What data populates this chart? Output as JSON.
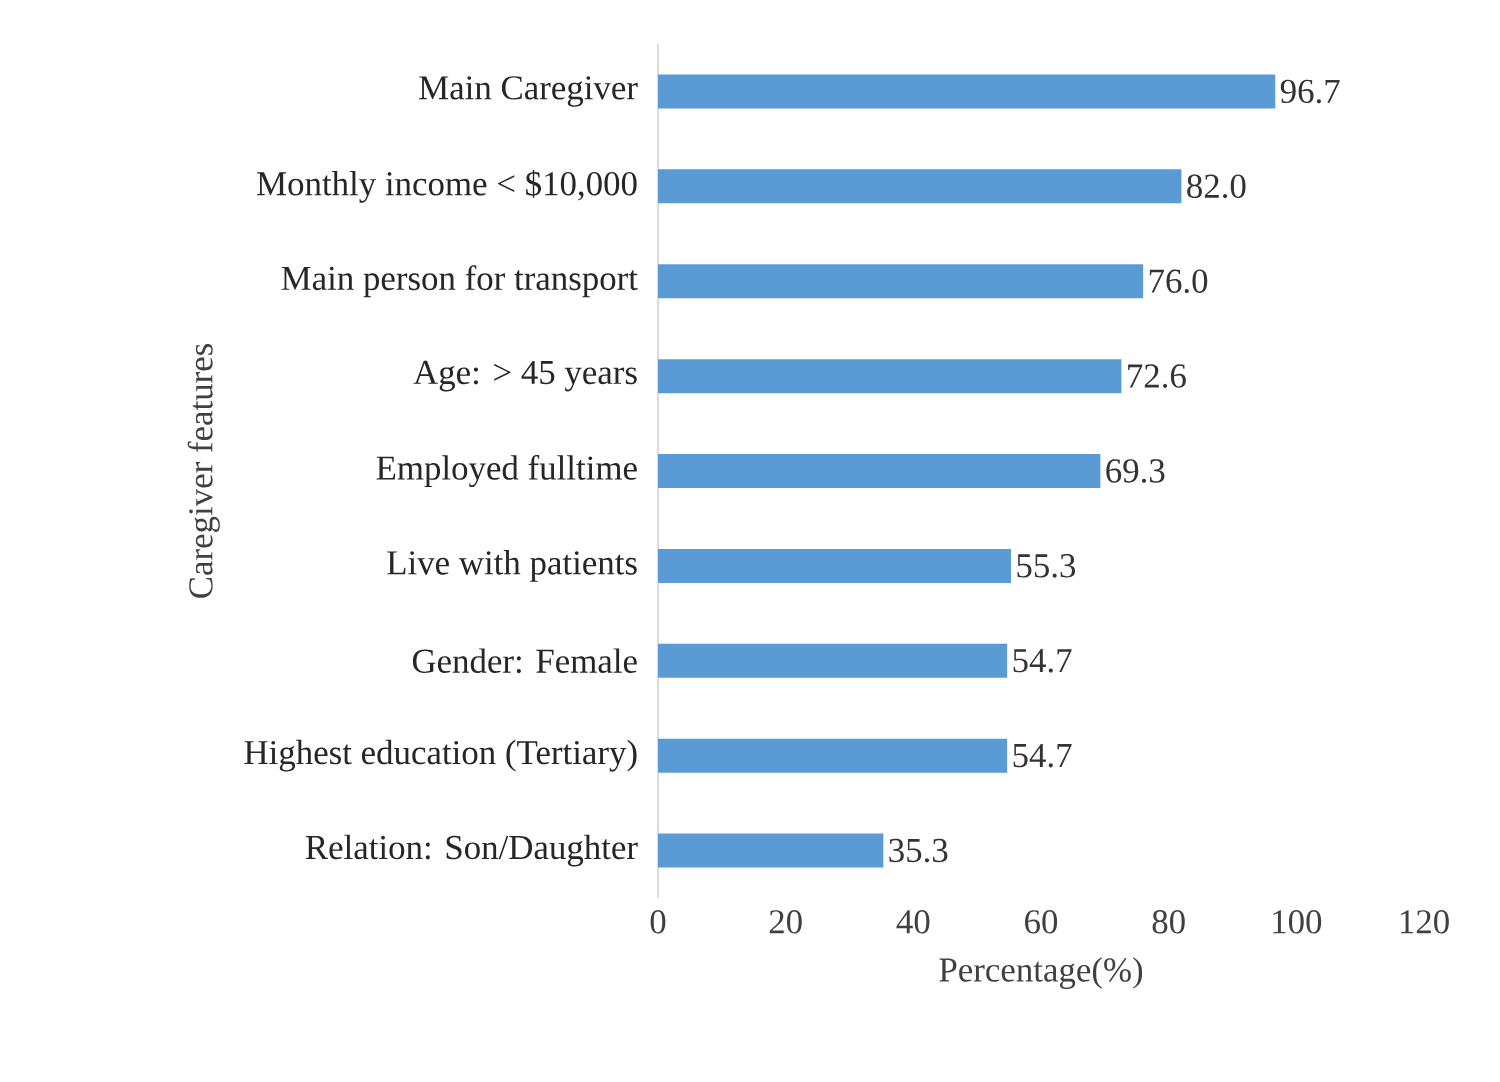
{
  "chart_data": {
    "type": "bar",
    "orientation": "horizontal",
    "xlabel": "Percentage(%)",
    "ylabel": "Caregiver features",
    "categories": [
      "Main Caregiver",
      "Monthly income < $10,000",
      "Main person for transport",
      "Age: > 45 years",
      "Employed fulltime",
      "Live with patients",
      "Gender: Female",
      "Highest education (Tertiary)",
      "Relation: Son/Daughter"
    ],
    "values": [
      96.7,
      82.0,
      76.0,
      72.6,
      69.3,
      55.3,
      54.7,
      54.7,
      35.3
    ],
    "value_labels": [
      "96.7",
      "82.0",
      "76.0",
      "72.6",
      "69.3",
      "55.3",
      "54.7",
      "54.7",
      "35.3"
    ],
    "color": "#5b9bd5",
    "xlim": [
      0,
      120
    ],
    "xticks": [
      0,
      20,
      40,
      60,
      80,
      100,
      120
    ],
    "grid": false
  }
}
